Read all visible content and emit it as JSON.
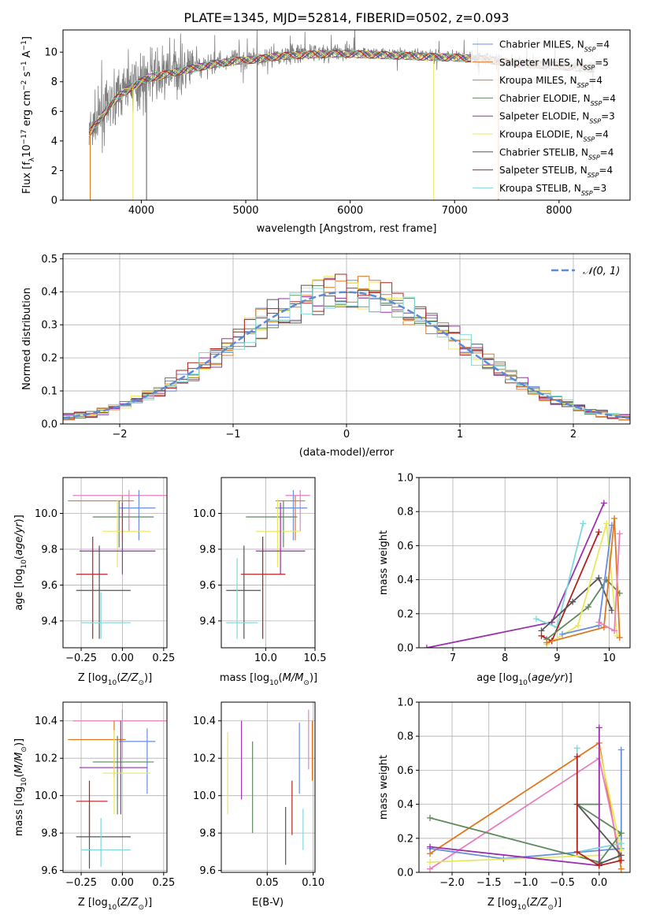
{
  "title": "PLATE=1345, MJD=52814, FIBERID=0502, z=0.093",
  "legend_colors": [
    "#6a8ee0",
    "#e07820",
    "#d97b2a",
    "#5e8a5e",
    "#9b2fae",
    "#e8e85a",
    "#555555",
    "#b22222",
    "#7fd8d8"
  ],
  "chart_data": [
    {
      "id": "spectrum",
      "type": "line",
      "xlabel": "wavelength [Angstrom, rest frame]",
      "ylabel": "Flux [f_λ10^-17 erg cm^-2 s^-1 A^-1]",
      "xlim": [
        3250,
        8680
      ],
      "ylim": [
        0,
        11.5
      ],
      "xticks": [
        4000,
        5000,
        6000,
        7000,
        8000
      ],
      "yticks": [
        0,
        2,
        4,
        6,
        8,
        10
      ],
      "legend_position": "upper right",
      "observed_envelope": [
        [
          3500,
          4.6
        ],
        [
          3600,
          5.5
        ],
        [
          3700,
          6.5
        ],
        [
          3800,
          7.2
        ],
        [
          3900,
          7.7
        ],
        [
          4000,
          8.1
        ],
        [
          4100,
          8.4
        ],
        [
          4300,
          8.7
        ],
        [
          4500,
          9.0
        ],
        [
          4700,
          9.3
        ],
        [
          4900,
          9.5
        ],
        [
          5100,
          9.6
        ],
        [
          5300,
          9.8
        ],
        [
          5500,
          9.9
        ],
        [
          5700,
          9.95
        ],
        [
          5900,
          10.0
        ],
        [
          6100,
          9.95
        ],
        [
          6300,
          9.9
        ],
        [
          6500,
          9.85
        ],
        [
          6700,
          9.8
        ],
        [
          6900,
          9.75
        ],
        [
          7100,
          9.7
        ],
        [
          7300,
          9.6
        ],
        [
          7500,
          9.4
        ],
        [
          7700,
          9.3
        ],
        [
          7900,
          9.2
        ],
        [
          8100,
          9.1
        ],
        [
          8300,
          9.0
        ],
        [
          8350,
          9.0
        ]
      ],
      "series": [
        {
          "name": "Chabrier MILES, N_SSP=4",
          "color": "#6a8ee0"
        },
        {
          "name": "Salpeter MILES, N_SSP=5",
          "color": "#e07820"
        },
        {
          "name": "Kroupa MILES, N_SSP=4",
          "color": "#d97b2a"
        },
        {
          "name": "Chabrier ELODIE, N_SSP=4",
          "color": "#5e8a5e"
        },
        {
          "name": "Salpeter ELODIE, N_SSP=3",
          "color": "#9b2fae"
        },
        {
          "name": "Kroupa ELODIE, N_SSP=4",
          "color": "#e8e85a"
        },
        {
          "name": "Chabrier STELIB, N_SSP=4",
          "color": "#555555"
        },
        {
          "name": "Salpeter STELIB, N_SSP=4",
          "color": "#b22222"
        },
        {
          "name": "Kroupa STELIB, N_SSP=3",
          "color": "#7fd8d8"
        }
      ]
    },
    {
      "id": "residuals",
      "type": "line",
      "xlabel": "(data-model)/error",
      "ylabel": "Normed distribution",
      "xlim": [
        -2.5,
        2.5
      ],
      "ylim": [
        0,
        0.515
      ],
      "xticks": [
        -2,
        -1,
        0,
        1,
        2
      ],
      "yticks": [
        0.0,
        0.1,
        0.2,
        0.3,
        0.4,
        0.5
      ],
      "grid": true,
      "legend": "N(0, 1)",
      "legend_position": "upper right",
      "histogram_bin_width": 0.1
    },
    {
      "id": "age-vs-Z",
      "type": "scatter",
      "xlabel": "Z [log10(Z/Z⊙)]",
      "ylabel": "age [log10(age/yr)]",
      "xlim": [
        -0.36,
        0.27
      ],
      "ylim": [
        9.25,
        10.2
      ],
      "xticks": [
        -0.25,
        0.0,
        0.25
      ],
      "yticks": [
        9.4,
        9.6,
        9.8,
        10.0
      ],
      "grid": true
    },
    {
      "id": "age-vs-mass",
      "type": "scatter",
      "xlabel": "mass [log10(M/M⊙)]",
      "xlim": [
        9.55,
        10.5
      ],
      "ylim": [
        9.25,
        10.2
      ],
      "xticks": [
        10.0,
        10.5
      ],
      "yticks": [
        9.4,
        9.6,
        9.8,
        10.0
      ],
      "grid": true
    },
    {
      "id": "weight-vs-age",
      "type": "line",
      "xlabel": "age [log10(age/yr)]",
      "ylabel": "mass weight",
      "xlim": [
        6.35,
        10.4
      ],
      "ylim": [
        0,
        1
      ],
      "xticks": [
        7,
        8,
        9,
        10
      ],
      "yticks": [
        0.0,
        0.2,
        0.4,
        0.6,
        0.8,
        1.0
      ],
      "grid": true
    },
    {
      "id": "mass-vs-Z",
      "type": "scatter",
      "xlabel": "Z [log10(Z/Z⊙)]",
      "ylabel": "mass [log10(M/M⊙)]",
      "xlim": [
        -0.36,
        0.27
      ],
      "ylim": [
        9.59,
        10.5
      ],
      "xticks": [
        -0.25,
        0.0,
        0.25
      ],
      "yticks": [
        9.6,
        9.8,
        10.0,
        10.2,
        10.4
      ],
      "grid": true
    },
    {
      "id": "mass-vs-ebv",
      "type": "scatter",
      "xlabel": "E(B-V)",
      "xlim": [
        0.0,
        0.102
      ],
      "ylim": [
        9.59,
        10.5
      ],
      "xticks": [
        0.05,
        0.1
      ],
      "yticks": [
        9.6,
        9.8,
        10.0,
        10.2,
        10.4
      ],
      "grid": true
    },
    {
      "id": "weight-vs-Z",
      "type": "line",
      "xlabel": "Z [log10(Z/Z⊙)]",
      "ylabel": "mass weight",
      "xlim": [
        -2.45,
        0.42
      ],
      "ylim": [
        0,
        1
      ],
      "xticks": [
        -2.0,
        -1.5,
        -1.0,
        -0.5,
        0.0
      ],
      "yticks": [
        0.0,
        0.2,
        0.4,
        0.6,
        0.8,
        1.0
      ],
      "grid": true
    }
  ]
}
